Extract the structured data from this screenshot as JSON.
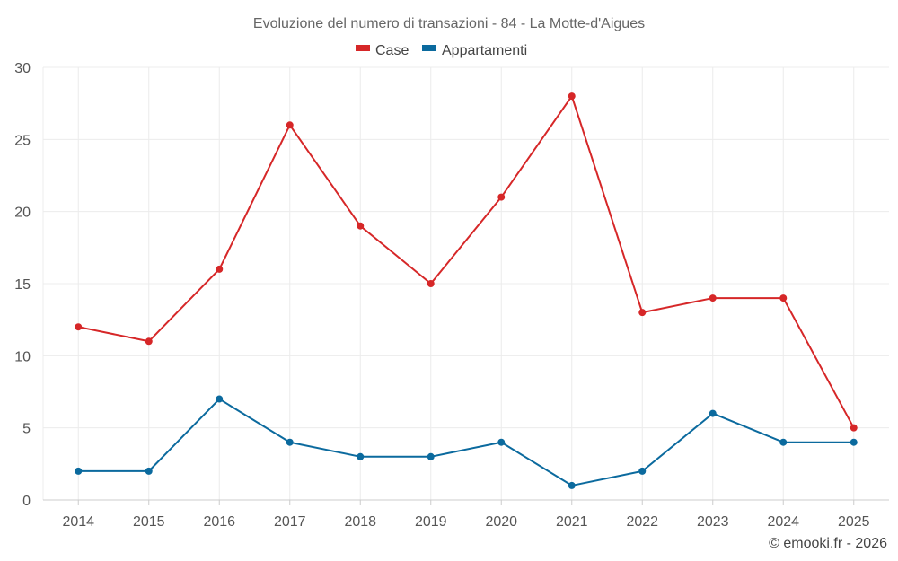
{
  "chart_data": {
    "type": "line",
    "title": "Evoluzione del numero di transazioni - 84 - La Motte-d'Aigues",
    "categories": [
      "2014",
      "2015",
      "2016",
      "2017",
      "2018",
      "2019",
      "2020",
      "2021",
      "2022",
      "2023",
      "2024",
      "2025"
    ],
    "series": [
      {
        "name": "Case",
        "color": "#d62728",
        "values": [
          12,
          11,
          16,
          26,
          19,
          15,
          21,
          28,
          13,
          14,
          14,
          5
        ]
      },
      {
        "name": "Appartamenti",
        "color": "#0b6a9e",
        "values": [
          2,
          2,
          7,
          4,
          3,
          3,
          4,
          1,
          2,
          6,
          4,
          4
        ]
      }
    ],
    "yticks": [
      "0",
      "5",
      "10",
      "15",
      "20",
      "25",
      "30"
    ],
    "ylim": [
      0,
      30
    ],
    "xlabel": "",
    "ylabel": "",
    "grid": true,
    "legend": "top-center"
  },
  "credit": "© emooki.fr - 2026"
}
